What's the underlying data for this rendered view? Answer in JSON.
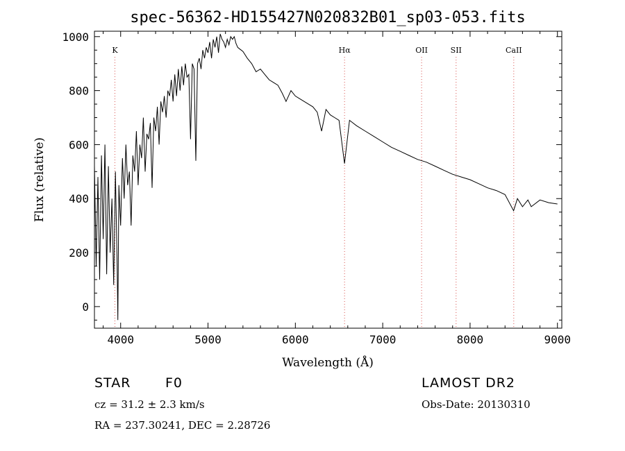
{
  "chart_data": {
    "type": "line",
    "title": "spec-56362-HD155427N020832B01_sp03-053.fits",
    "xlabel": "Wavelength (Å)",
    "ylabel": "Flux (relative)",
    "xlim": [
      3700,
      9050
    ],
    "ylim": [
      -80,
      1020
    ],
    "x_ticks": [
      "4000",
      "5000",
      "6000",
      "7000",
      "8000",
      "9000"
    ],
    "y_ticks": [
      "0",
      "200",
      "400",
      "600",
      "800",
      "1000"
    ],
    "grid": false,
    "series": [
      {
        "x": [
          3700,
          3720,
          3740,
          3760,
          3780,
          3800,
          3820,
          3840,
          3860,
          3880,
          3900,
          3920,
          3940,
          3960,
          3968,
          3980,
          4000,
          4020,
          4040,
          4060,
          4080,
          4100,
          4120,
          4140,
          4160,
          4180,
          4200,
          4220,
          4240,
          4260,
          4280,
          4300,
          4320,
          4340,
          4360,
          4380,
          4400,
          4420,
          4440,
          4460,
          4480,
          4500,
          4520,
          4540,
          4560,
          4580,
          4600,
          4620,
          4640,
          4660,
          4680,
          4700,
          4720,
          4740,
          4760,
          4780,
          4800,
          4820,
          4840,
          4861,
          4880,
          4900,
          4920,
          4940,
          4960,
          4980,
          5000,
          5020,
          5040,
          5060,
          5080,
          5100,
          5120,
          5140,
          5160,
          5180,
          5200,
          5220,
          5240,
          5260,
          5280,
          5300,
          5320,
          5340,
          5360,
          5380,
          5400,
          5450,
          5500,
          5550,
          5600,
          5650,
          5700,
          5750,
          5800,
          5850,
          5893,
          5950,
          6000,
          6050,
          6100,
          6150,
          6200,
          6250,
          6300,
          6350,
          6400,
          6450,
          6500,
          6563,
          6620,
          6700,
          6800,
          6900,
          7000,
          7100,
          7200,
          7300,
          7400,
          7500,
          7600,
          7700,
          7800,
          7900,
          8000,
          8100,
          8200,
          8300,
          8400,
          8498,
          8542,
          8600,
          8662,
          8700,
          8800,
          8900,
          9000
        ],
        "y": [
          520,
          150,
          480,
          100,
          560,
          250,
          600,
          120,
          520,
          200,
          400,
          80,
          500,
          150,
          -50,
          450,
          300,
          550,
          400,
          600,
          450,
          500,
          300,
          560,
          500,
          650,
          450,
          600,
          550,
          700,
          500,
          640,
          620,
          680,
          440,
          700,
          650,
          740,
          600,
          760,
          720,
          780,
          700,
          800,
          780,
          840,
          760,
          860,
          780,
          880,
          800,
          890,
          820,
          900,
          850,
          860,
          620,
          900,
          880,
          540,
          900,
          920,
          880,
          950,
          920,
          960,
          940,
          980,
          920,
          990,
          960,
          1000,
          940,
          1010,
          990,
          980,
          960,
          990,
          970,
          1000,
          990,
          1000,
          975,
          960,
          955,
          950,
          945,
          920,
          900,
          870,
          880,
          860,
          840,
          830,
          820,
          790,
          760,
          800,
          780,
          770,
          760,
          750,
          740,
          720,
          650,
          730,
          710,
          700,
          690,
          530,
          690,
          670,
          650,
          630,
          610,
          590,
          575,
          560,
          545,
          535,
          520,
          505,
          490,
          480,
          470,
          455,
          440,
          430,
          415,
          355,
          400,
          370,
          395,
          370,
          395,
          385,
          380
        ]
      }
    ],
    "annotations": [
      "K",
      "Hα",
      "OII",
      "SII",
      "CaII"
    ],
    "annotation_x": [
      3934,
      6563,
      7445,
      7840,
      8500
    ]
  },
  "info": {
    "object": "STAR",
    "subclass": "F0",
    "cz": "cz = 31.2 ± 2.3 km/s",
    "coords": "RA = 237.30241, DEC =   2.28726",
    "survey": "LAMOST DR2",
    "obsdate": "Obs-Date: 20130310"
  },
  "colors": {
    "axis": "#000000",
    "line": "#000000",
    "marker": "#d9534f"
  }
}
